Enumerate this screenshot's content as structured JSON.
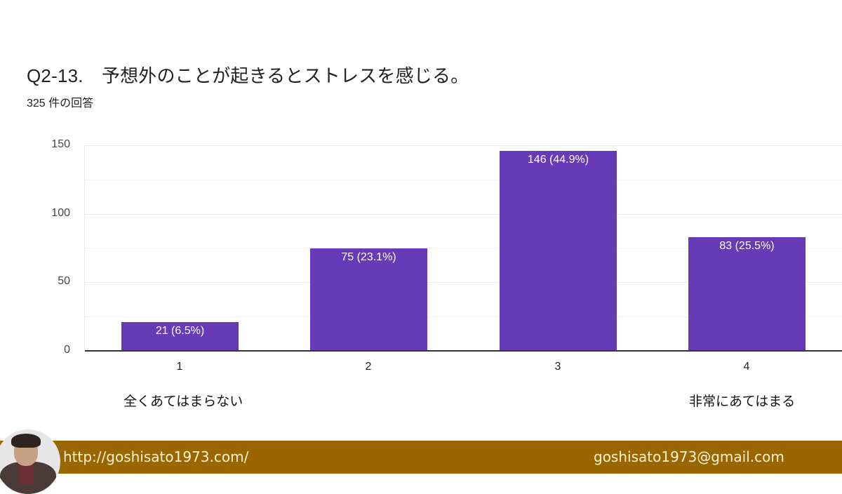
{
  "header": {
    "title": "Q2-13.　予想外のことが起きるとストレスを感じる。",
    "response_count": "325 件の回答"
  },
  "chart_data": {
    "type": "bar",
    "title": "Q2-13. 予想外のことが起きるとストレスを感じる。",
    "subtitle": "325 件の回答",
    "categories": [
      "1",
      "2",
      "3",
      "4"
    ],
    "values": [
      21,
      75,
      146,
      83
    ],
    "percentages": [
      "6.5%",
      "23.1%",
      "44.9%",
      "25.5%"
    ],
    "data_labels": [
      "21 (6.5%)",
      "75 (23.1%)",
      "146 (44.9%)",
      "83 (25.5%)"
    ],
    "xlabel": "",
    "ylabel": "",
    "ylim": [
      0,
      150
    ],
    "yticks": [
      "0",
      "50",
      "100",
      "150"
    ],
    "grid": true,
    "anchor_labels": {
      "low": "全くあてはまらない",
      "high": "非常にあてはまる"
    },
    "bar_color": "#673ab7",
    "legend": null
  },
  "footer": {
    "url": "http://goshisato1973.com/",
    "email": "goshisato1973@gmail.com",
    "background_color": "#996600"
  }
}
